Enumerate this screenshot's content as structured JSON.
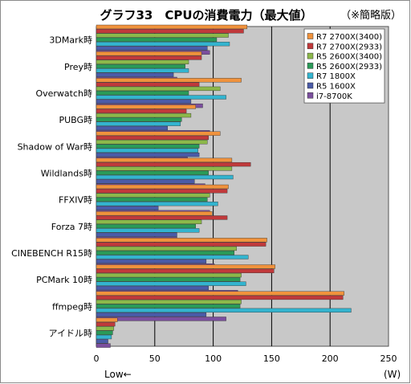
{
  "title": "グラフ33　CPUの消費電力（最大値）",
  "note": "（※簡略版）",
  "x_unit": "(W)",
  "low_label": "Low←",
  "chart_data": {
    "type": "bar",
    "orientation": "horizontal",
    "title": "グラフ33　CPUの消費電力（最大値）",
    "xlabel": "(W)",
    "xlim": [
      0,
      250
    ],
    "xticks": [
      0,
      50,
      100,
      150,
      200,
      250
    ],
    "grid": true,
    "legend_position": "top-right",
    "categories": [
      "3DMark時",
      "Prey時",
      "Overwatch時",
      "PUBG時",
      "Shadow of War時",
      "Wildlands時",
      "FFXIV時",
      "Forza 7時",
      "CINEBENCH R15時",
      "PCMark 10時",
      "ffmpeg時",
      "アイドル時"
    ],
    "series": [
      {
        "name": "R7 2700X(3400)",
        "color": "#f0923c",
        "values": [
          129,
          90,
          124,
          85,
          106,
          116,
          113,
          99,
          146,
          153,
          212,
          18
        ]
      },
      {
        "name": "R7 2700X(2933)",
        "color": "#c0393b",
        "values": [
          126,
          90,
          88,
          77,
          96,
          132,
          112,
          112,
          145,
          152,
          211,
          16
        ]
      },
      {
        "name": "R5 2600X(3400)",
        "color": "#8cb84a",
        "values": [
          113,
          79,
          106,
          81,
          95,
          116,
          97,
          90,
          120,
          124,
          124,
          15
        ]
      },
      {
        "name": "R5 2600X(2933)",
        "color": "#2a9a58",
        "values": [
          103,
          76,
          79,
          73,
          88,
          96,
          95,
          85,
          118,
          123,
          123,
          14
        ]
      },
      {
        "name": "R7 1800X",
        "color": "#33b4cf",
        "values": [
          114,
          79,
          111,
          72,
          87,
          117,
          104,
          88,
          130,
          128,
          218,
          13
        ]
      },
      {
        "name": "R5 1600X",
        "color": "#4a5ba8",
        "values": [
          95,
          66,
          81,
          61,
          88,
          84,
          53,
          69,
          94,
          96,
          94,
          10
        ]
      },
      {
        "name": "i7-8700K",
        "color": "#7b4f9e",
        "values": [
          97,
          69,
          91,
          97,
          78,
          93,
          97,
          69,
          101,
          121,
          111,
          12
        ]
      }
    ]
  }
}
